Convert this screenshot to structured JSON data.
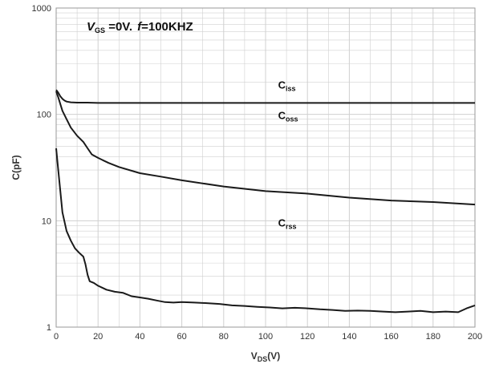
{
  "chart_data": {
    "type": "line",
    "title": "",
    "condition": {
      "vgs_symbol": "V",
      "vgs_sub": "GS",
      "vgs_value": " =0V.",
      "f_symbol": "f",
      "f_value": "=100KHZ"
    },
    "xlabel": {
      "main": "V",
      "sub": "DS",
      "suffix": "(V)"
    },
    "ylabel": "C(pF)",
    "xlim": [
      0,
      200
    ],
    "ylim": [
      1,
      1000
    ],
    "yscale": "log",
    "grid": true,
    "x_ticks": [
      0,
      20,
      40,
      60,
      80,
      100,
      120,
      140,
      160,
      180,
      200
    ],
    "y_ticks": [
      1,
      10,
      100,
      1000
    ],
    "line_color": "#1a1a1a",
    "grid_color": "#d0d0d0",
    "series": [
      {
        "name": "Ciss",
        "label_main": "C",
        "label_sub": "iss",
        "label_at": [
          106,
          175
        ],
        "x": [
          0,
          1,
          2,
          3,
          4,
          5,
          7,
          10,
          15,
          20,
          40,
          60,
          80,
          100,
          120,
          140,
          160,
          180,
          200
        ],
        "y": [
          170,
          160,
          148,
          140,
          135,
          132,
          130,
          129,
          129,
          128,
          128,
          128,
          128,
          128,
          128,
          128,
          128,
          128,
          128
        ]
      },
      {
        "name": "Coss",
        "label_main": "C",
        "label_sub": "oss",
        "label_at": [
          106,
          90
        ],
        "x": [
          0,
          1,
          2,
          3,
          5,
          7,
          10,
          13,
          15,
          17,
          20,
          25,
          30,
          40,
          50,
          60,
          80,
          100,
          120,
          140,
          160,
          180,
          200
        ],
        "y": [
          165,
          145,
          125,
          108,
          90,
          75,
          63,
          55,
          48,
          42,
          39,
          35,
          32,
          28,
          26,
          24,
          21,
          19,
          18,
          16.5,
          15.5,
          15,
          14.2
        ]
      },
      {
        "name": "Crss",
        "label_main": "C",
        "label_sub": "rss",
        "label_at": [
          106,
          8.8
        ],
        "x": [
          0,
          1,
          2,
          3,
          5,
          7,
          9,
          11,
          13,
          14,
          15,
          16,
          18,
          20,
          24,
          28,
          32,
          36,
          40,
          44,
          48,
          52,
          56,
          60,
          66,
          72,
          78,
          84,
          90,
          96,
          102,
          108,
          114,
          120,
          126,
          132,
          138,
          144,
          150,
          156,
          162,
          168,
          174,
          180,
          186,
          192,
          196,
          200
        ],
        "y": [
          48,
          30,
          19,
          12,
          8,
          6.5,
          5.5,
          5,
          4.6,
          3.9,
          3.1,
          2.7,
          2.6,
          2.45,
          2.25,
          2.15,
          2.1,
          1.95,
          1.9,
          1.85,
          1.78,
          1.72,
          1.7,
          1.72,
          1.7,
          1.68,
          1.65,
          1.6,
          1.58,
          1.55,
          1.53,
          1.5,
          1.52,
          1.5,
          1.47,
          1.45,
          1.42,
          1.43,
          1.42,
          1.4,
          1.38,
          1.4,
          1.42,
          1.38,
          1.4,
          1.38,
          1.5,
          1.6
        ]
      }
    ]
  }
}
